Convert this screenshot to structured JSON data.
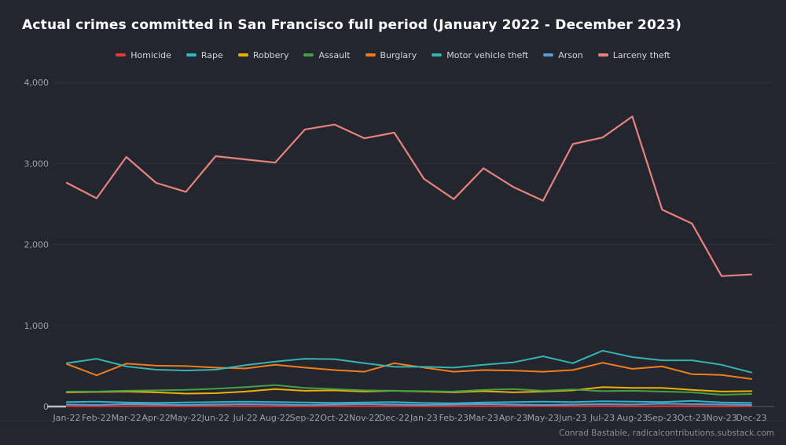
{
  "page": {
    "title": "Actual crimes committed in San Francisco full period (January 2022 - December 2023)"
  },
  "footer": {
    "attribution": "Conrad Bastable, radicalcontributions.substack.com"
  },
  "colors": {
    "background": "#23262e",
    "gridline": "#2d313b",
    "zero_axis": "#565c68",
    "tick_text": "#9aa2ad",
    "legend_text": "#d1d5db",
    "title_text": "#ffffff",
    "footer_text": "#878d96"
  },
  "chart_data": {
    "type": "line",
    "title": "Actual crimes committed in San Francisco full period (January 2022 - December 2023)",
    "xlabel": "",
    "ylabel": "",
    "ylim": [
      0,
      4000
    ],
    "grid": "horizontal",
    "legend_position": "top",
    "yticks": {
      "values": [
        0,
        1000,
        2000,
        3000,
        4000
      ],
      "labels": [
        "0",
        "1,000",
        "2,000",
        "3,000",
        "4,000"
      ]
    },
    "categories": [
      "Jan-22",
      "Feb-22",
      "Mar-22",
      "Apr-22",
      "May-22",
      "Jun-22",
      "Jul-22",
      "Aug-22",
      "Sep-22",
      "Oct-22",
      "Nov-22",
      "Dec-22",
      "Jan-23",
      "Feb-23",
      "Mar-23",
      "Apr-23",
      "May-23",
      "Jun-23",
      "Jul-23",
      "Aug-23",
      "Sep-23",
      "Oct-23",
      "Nov-23",
      "Dec-23"
    ],
    "series": [
      {
        "name": "Homicide",
        "color": "#e53935",
        "values": [
          5,
          4,
          6,
          8,
          5,
          7,
          6,
          5,
          4,
          6,
          5,
          8,
          4,
          5,
          6,
          7,
          8,
          5,
          6,
          4,
          5,
          6,
          3,
          5
        ]
      },
      {
        "name": "Rape",
        "color": "#29b8c9",
        "values": [
          55,
          60,
          50,
          45,
          50,
          55,
          60,
          55,
          50,
          45,
          50,
          55,
          45,
          40,
          50,
          55,
          60,
          55,
          65,
          60,
          55,
          70,
          50,
          45
        ]
      },
      {
        "name": "Robbery",
        "color": "#eeb000",
        "values": [
          175,
          180,
          185,
          175,
          160,
          165,
          185,
          215,
          195,
          200,
          185,
          195,
          185,
          175,
          190,
          175,
          185,
          200,
          240,
          230,
          230,
          205,
          185,
          190
        ]
      },
      {
        "name": "Assault",
        "color": "#43a047",
        "values": [
          185,
          185,
          195,
          200,
          205,
          220,
          240,
          265,
          230,
          215,
          200,
          195,
          190,
          185,
          205,
          215,
          195,
          210,
          190,
          195,
          185,
          175,
          145,
          155
        ]
      },
      {
        "name": "Burglary",
        "color": "#f07d1a",
        "values": [
          525,
          385,
          530,
          505,
          500,
          480,
          470,
          515,
          480,
          450,
          430,
          535,
          480,
          430,
          450,
          445,
          430,
          450,
          540,
          465,
          495,
          400,
          390,
          340
        ]
      },
      {
        "name": "Motor vehicle theft",
        "color": "#36b3b0",
        "values": [
          535,
          590,
          495,
          455,
          445,
          455,
          510,
          555,
          590,
          585,
          535,
          490,
          490,
          480,
          515,
          545,
          620,
          535,
          690,
          610,
          570,
          570,
          515,
          420
        ]
      },
      {
        "name": "Arson",
        "color": "#5b9bd5",
        "values": [
          25,
          20,
          30,
          25,
          20,
          25,
          30,
          25,
          20,
          25,
          30,
          25,
          20,
          25,
          30,
          25,
          20,
          25,
          30,
          25,
          35,
          30,
          25,
          20
        ]
      },
      {
        "name": "Larceny theft",
        "color": "#e8827d",
        "values": [
          2760,
          2570,
          3080,
          2760,
          2650,
          3090,
          3050,
          3010,
          3420,
          3480,
          3310,
          3380,
          2810,
          2560,
          2940,
          2710,
          2540,
          3240,
          3320,
          3580,
          2430,
          2260,
          1610,
          1630
        ]
      }
    ]
  }
}
